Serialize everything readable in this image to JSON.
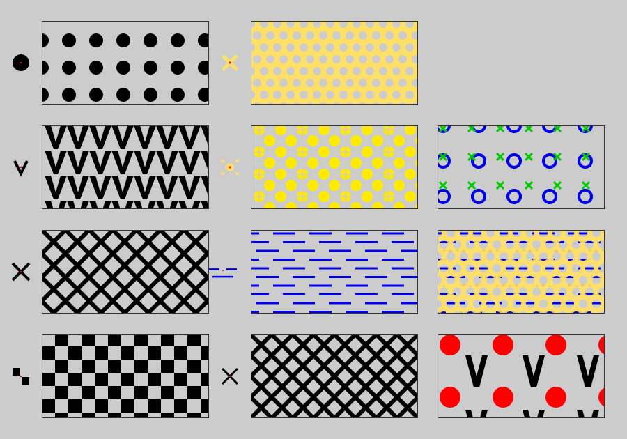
{
  "colors": {
    "background": "#cccccc",
    "black": "#000000",
    "yellow": "#ffe066",
    "bright_yellow": "#ffea00",
    "blue": "#0000ee",
    "green": "#00cc00",
    "red": "#ff0000",
    "tile_border": "#333333"
  },
  "rows": [
    {
      "icon_left": "dot-icon",
      "tiles": [
        "black-dot-pattern",
        "yellow-lattice-pattern"
      ],
      "icon_mid": "yellow-cross-icon"
    },
    {
      "icon_left": "chevron-v-icon",
      "tiles": [
        "black-chevron-pattern",
        "yellow-crossed-dot-pattern",
        "blue-ring-green-cross-pattern"
      ],
      "icon_mid": "yellow-flower-icon"
    },
    {
      "icon_left": "x-icon",
      "tiles": [
        "black-diagonal-grid-pattern",
        "blue-dash-pattern",
        "yellow-ring-blue-dash-overlay-pattern"
      ],
      "icon_mid": "blue-dash-icon"
    },
    {
      "icon_left": "checker-icon",
      "tiles": [
        "black-checkerboard-pattern",
        "black-diagonal-grid-dense-pattern",
        "red-dot-chevron-pattern"
      ],
      "icon_mid": "x-icon"
    }
  ]
}
